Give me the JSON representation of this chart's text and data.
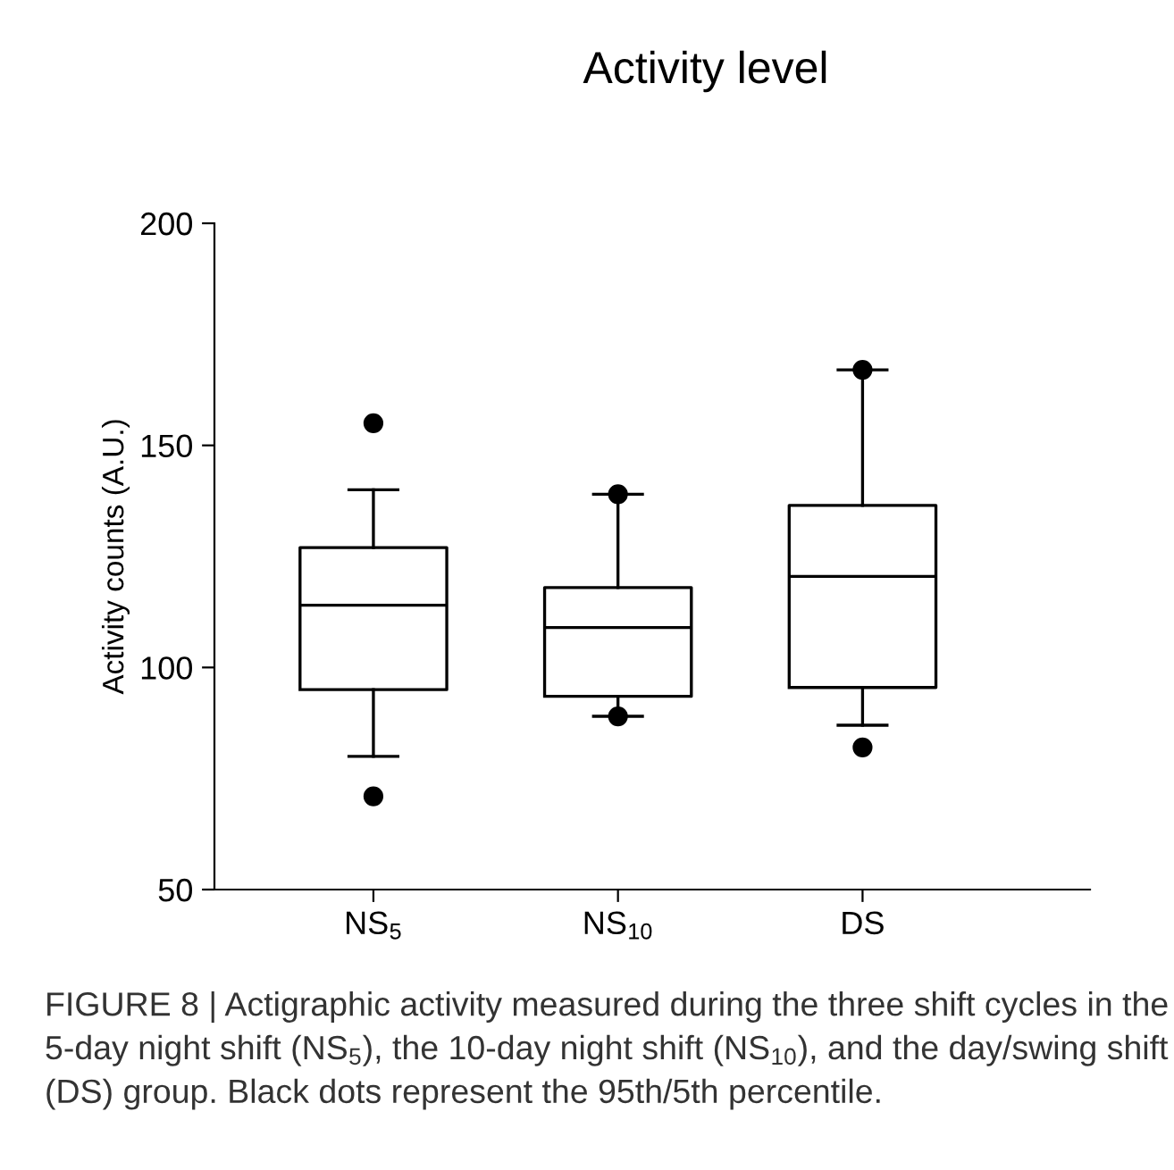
{
  "chart_data": {
    "type": "box",
    "title": "Activity level",
    "ylabel": "Activity counts (A.U.)",
    "categories": [
      "NS$_{5}$",
      "NS$_{10}$",
      "DS"
    ],
    "boxes": [
      {
        "low": 80,
        "q1": 95,
        "median": 114,
        "q3": 127,
        "high": 140,
        "outliers": [
          155,
          71
        ]
      },
      {
        "low": 89,
        "q1": 93.5,
        "median": 109,
        "q3": 118,
        "high": 139,
        "outliers": [
          139,
          89
        ]
      },
      {
        "low": 87,
        "q1": 95.5,
        "median": 120.5,
        "q3": 136.5,
        "high": 167,
        "outliers": [
          167,
          82
        ]
      }
    ],
    "ylim": [
      50,
      200
    ],
    "yticks": [
      50,
      100,
      150,
      200
    ],
    "grid": false,
    "legend": false,
    "annotations": [
      "FIGURE 8 | Actigraphic activity measured during the three shift cycles in the 5-day night shift (NS$_{5}$), the 10-day night shift (NS$_{10}$), and the day/swing shift (DS) group. Black dots represent the 95th/5th percentile."
    ]
  }
}
